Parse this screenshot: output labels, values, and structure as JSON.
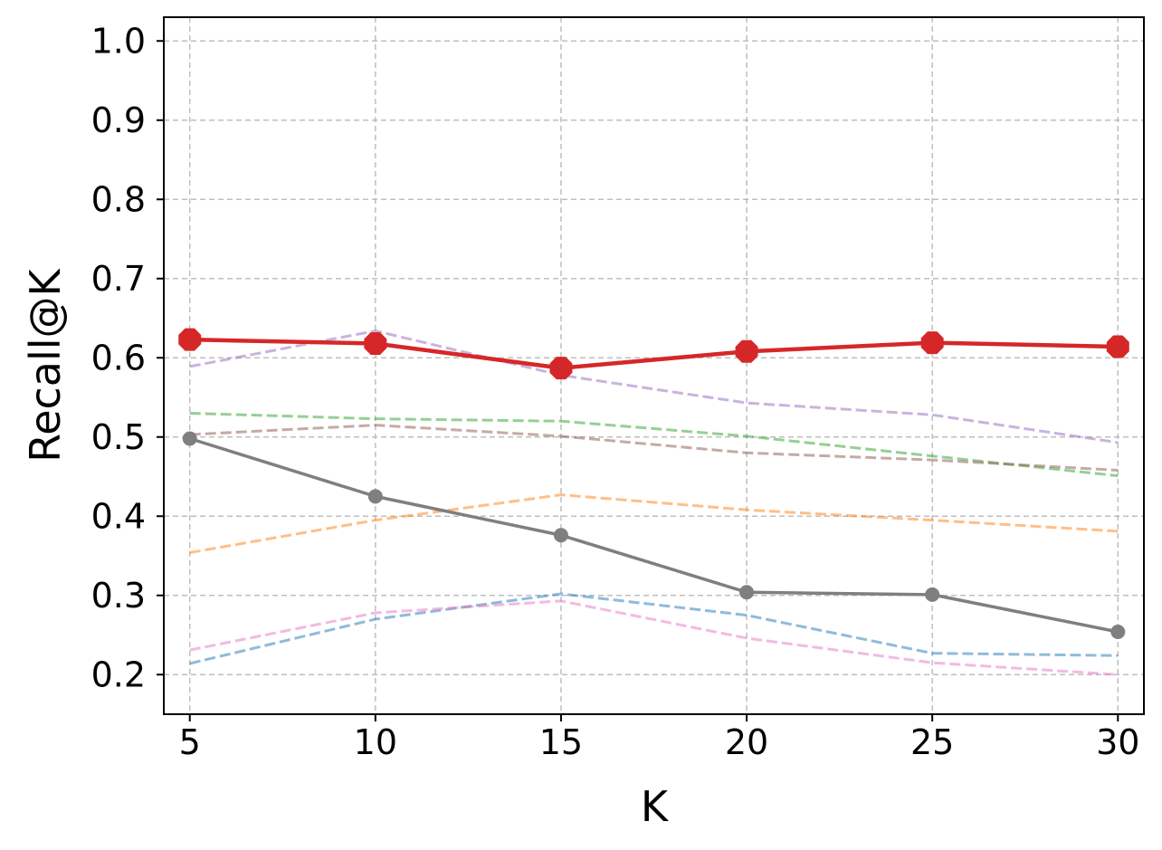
{
  "chart_data": {
    "type": "line",
    "title": "",
    "xlabel": "K",
    "ylabel": "Recall@K",
    "x": [
      5,
      10,
      15,
      20,
      25,
      30
    ],
    "x_tick_labels": [
      "5",
      "10",
      "15",
      "20",
      "25",
      "30"
    ],
    "y_ticks": [
      0.2,
      0.3,
      0.4,
      0.5,
      0.6,
      0.7,
      0.8,
      0.9,
      1.0
    ],
    "y_tick_labels": [
      "0.2",
      "0.3",
      "0.4",
      "0.5",
      "0.6",
      "0.7",
      "0.8",
      "0.9",
      "1.0"
    ],
    "xlim": [
      4.3,
      30.7
    ],
    "ylim": [
      0.15,
      1.03
    ],
    "grid": true,
    "legend": "none",
    "series": [
      {
        "values": [
          0.214,
          0.27,
          0.302,
          0.275,
          0.227,
          0.224
        ],
        "color": "#1f77b4",
        "style": "dashed",
        "marker": "none"
      },
      {
        "values": [
          0.354,
          0.395,
          0.427,
          0.408,
          0.395,
          0.381
        ],
        "color": "#ff7f0e",
        "style": "dashed",
        "marker": "none"
      },
      {
        "values": [
          0.53,
          0.523,
          0.52,
          0.501,
          0.476,
          0.451
        ],
        "color": "#2ca02c",
        "style": "dashed",
        "marker": "none"
      },
      {
        "values": [
          0.589,
          0.634,
          0.578,
          0.543,
          0.528,
          0.493
        ],
        "color": "#9467bd",
        "style": "dashed",
        "marker": "none"
      },
      {
        "values": [
          0.503,
          0.515,
          0.501,
          0.48,
          0.471,
          0.458
        ],
        "color": "#8c564b",
        "style": "dashed",
        "marker": "none"
      },
      {
        "values": [
          0.231,
          0.278,
          0.293,
          0.246,
          0.215,
          0.2
        ],
        "color": "#e377c2",
        "style": "dashed",
        "marker": "none"
      },
      {
        "values": [
          0.498,
          0.425,
          0.376,
          0.304,
          0.301,
          0.254
        ],
        "color": "#7f7f7f",
        "style": "solid",
        "marker": "circle"
      },
      {
        "values": [
          0.623,
          0.618,
          0.587,
          0.608,
          0.619,
          0.614
        ],
        "color": "#d62728",
        "style": "solid",
        "marker": "octagon"
      }
    ]
  }
}
